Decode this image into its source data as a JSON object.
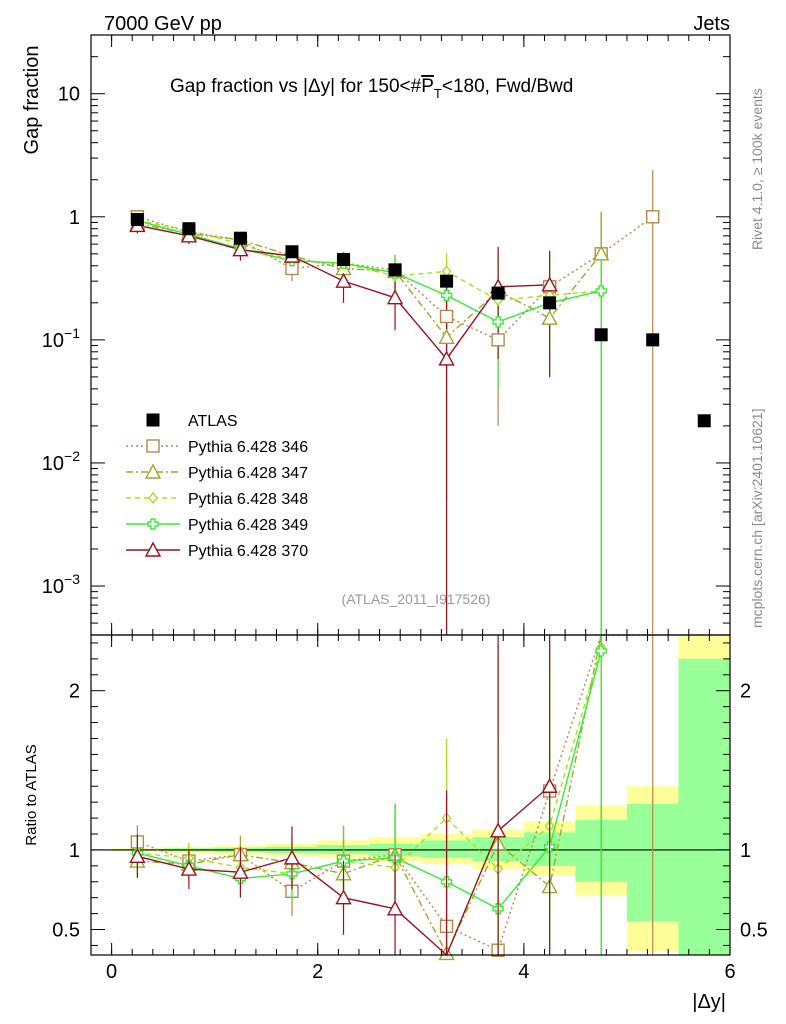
{
  "header": {
    "left": "7000 GeV pp",
    "right": "Jets",
    "side_rivet": "Rivet 4.1.0, ≥ 100k events",
    "side_mcplots": "mcplots.cern.ch [arXiv:2401.10621]",
    "analysis_tag": "(ATLAS_2011_I917526)"
  },
  "legend": [
    {
      "key": "atlas",
      "label": "ATLAS",
      "color": "#000000",
      "marker": "square-filled"
    },
    {
      "key": "p346",
      "label": "Pythia 6.428 346",
      "color": "#b8864b",
      "marker": "square-open"
    },
    {
      "key": "p347",
      "label": "Pythia 6.428 347",
      "color": "#9aaa27",
      "marker": "triangle-open"
    },
    {
      "key": "p348",
      "label": "Pythia 6.428 348",
      "color": "#a4e01e",
      "marker": "diamond-open"
    },
    {
      "key": "p349",
      "label": "Pythia 6.428 349",
      "color": "#33ee33",
      "marker": "cross-open"
    },
    {
      "key": "p370",
      "label": "Pythia 6.428 370",
      "color": "#9b1020",
      "marker": "triangle-open"
    }
  ],
  "chart_data": {
    "type": "line",
    "title": "Gap fraction vs |Δy| for 150<#P̅T<180, Fwd/Bwd",
    "title_parts": {
      "pre": "Gap fraction vs |Δy| for 150<#",
      "var": "P",
      "sub": "T",
      "post": "<180, Fwd/Bwd"
    },
    "xlabel": "|Δy|",
    "ylabel": "Gap fraction",
    "ratio_ylabel": "Ratio to ATLAS",
    "xlim": [
      -0.2,
      6.0
    ],
    "ylim_log": [
      0.0004,
      30
    ],
    "ratio_ylim": [
      0.34,
      2.35
    ],
    "x_ticks": [
      0,
      2,
      4,
      6
    ],
    "x_tick_labels": [
      "0",
      "2",
      "4",
      "6"
    ],
    "y_ticks": [
      0.001,
      0.01,
      0.1,
      1,
      10
    ],
    "y_tick_labels": [
      {
        "base": "10",
        "exp": "−3"
      },
      {
        "base": "10",
        "exp": "−2"
      },
      {
        "base": "10",
        "exp": "−1"
      },
      {
        "base": "1",
        "exp": ""
      },
      {
        "base": "10",
        "exp": ""
      }
    ],
    "ratio_ticks": [
      0.5,
      1,
      2
    ],
    "ratio_tick_labels": [
      "0.5",
      "1",
      "2"
    ],
    "x": [
      0.25,
      0.75,
      1.25,
      1.75,
      2.25,
      2.75,
      3.25,
      3.75,
      4.25,
      4.75,
      5.25,
      5.75
    ],
    "atlas": {
      "values": [
        0.95,
        0.8,
        0.67,
        0.52,
        0.45,
        0.37,
        0.3,
        0.24,
        0.2,
        0.11,
        0.1,
        0.022
      ]
    },
    "band_edges": [
      0,
      0.5,
      1.0,
      1.5,
      2.0,
      2.5,
      3.0,
      3.5,
      4.0,
      4.5,
      5.0,
      5.5,
      6.0
    ],
    "band_yellow": [
      [
        0.99,
        1.01
      ],
      [
        0.98,
        1.02
      ],
      [
        0.97,
        1.03
      ],
      [
        0.96,
        1.04
      ],
      [
        0.95,
        1.06
      ],
      [
        0.93,
        1.08
      ],
      [
        0.91,
        1.1
      ],
      [
        0.88,
        1.13
      ],
      [
        0.84,
        1.18
      ],
      [
        0.71,
        1.28
      ],
      [
        0.36,
        1.4
      ],
      [
        0.3,
        2.35
      ]
    ],
    "band_green": [
      [
        0.995,
        1.005
      ],
      [
        0.99,
        1.01
      ],
      [
        0.985,
        1.015
      ],
      [
        0.98,
        1.02
      ],
      [
        0.975,
        1.03
      ],
      [
        0.96,
        1.04
      ],
      [
        0.95,
        1.06
      ],
      [
        0.93,
        1.08
      ],
      [
        0.9,
        1.11
      ],
      [
        0.8,
        1.19
      ],
      [
        0.55,
        1.29
      ],
      [
        0.3,
        2.2
      ]
    ],
    "series": [
      {
        "key": "p346",
        "name": "Pythia 6.428 346",
        "x": [
          0.25,
          0.75,
          1.25,
          1.75,
          2.25,
          2.75,
          3.25,
          3.75,
          4.25,
          4.75,
          5.25
        ],
        "values": [
          1.0,
          0.75,
          0.65,
          0.38,
          0.42,
          0.37,
          0.155,
          0.1,
          0.27,
          0.5,
          1.0
        ],
        "err_lo": [
          0.1,
          0.08,
          0.08,
          0.08,
          0.1,
          0.12,
          0.12,
          0.08,
          0.2,
          0.5,
          1.0
        ],
        "err_hi": [
          0.1,
          0.08,
          0.08,
          0.08,
          0.1,
          0.12,
          0.3,
          0.2,
          0.25,
          0.6,
          1.4
        ],
        "ratio": [
          1.05,
          0.93,
          0.97,
          0.74,
          0.93,
          0.97,
          0.52,
          0.37,
          1.37,
          4.5,
          10.0
        ]
      },
      {
        "key": "p347",
        "name": "Pythia 6.428 347",
        "x": [
          0.25,
          0.75,
          1.25,
          1.75,
          2.25,
          2.75,
          3.25,
          3.75,
          4.25,
          4.75
        ],
        "values": [
          0.88,
          0.73,
          0.65,
          0.48,
          0.38,
          0.36,
          0.105,
          0.25,
          0.15,
          0.5
        ],
        "err_lo": [
          0.1,
          0.08,
          0.08,
          0.09,
          0.1,
          0.1,
          0.1,
          0.15,
          0.1,
          0.5
        ],
        "err_hi": [
          0.1,
          0.08,
          0.08,
          0.09,
          0.1,
          0.12,
          0.2,
          0.3,
          0.3,
          0.6
        ],
        "ratio": [
          0.93,
          0.91,
          0.97,
          0.92,
          0.85,
          0.97,
          0.35,
          1.04,
          0.77,
          4.5
        ]
      },
      {
        "key": "p348",
        "name": "Pythia 6.428 348",
        "x": [
          0.25,
          0.75,
          1.25,
          1.75,
          2.25,
          2.75,
          3.25,
          3.75,
          4.25,
          4.75
        ],
        "values": [
          0.93,
          0.78,
          0.6,
          0.44,
          0.42,
          0.33,
          0.36,
          0.21,
          0.23,
          0.25
        ],
        "err_lo": [
          0.1,
          0.08,
          0.08,
          0.09,
          0.1,
          0.1,
          0.2,
          0.15,
          0.12,
          0.25
        ],
        "err_hi": [
          0.1,
          0.08,
          0.08,
          0.09,
          0.1,
          0.12,
          0.15,
          0.2,
          0.2,
          0.3
        ],
        "ratio": [
          0.98,
          0.95,
          0.89,
          0.85,
          0.93,
          0.89,
          1.2,
          0.88,
          1.15,
          2.27
        ]
      },
      {
        "key": "p349",
        "name": "Pythia 6.428 349",
        "x": [
          0.25,
          0.75,
          1.25,
          1.75,
          2.25,
          2.75,
          3.25,
          3.75,
          4.25,
          4.75
        ],
        "values": [
          0.93,
          0.72,
          0.55,
          0.44,
          0.42,
          0.35,
          0.23,
          0.14,
          0.2,
          0.25
        ],
        "err_lo": [
          0.1,
          0.08,
          0.08,
          0.09,
          0.1,
          0.1,
          0.23,
          0.1,
          0.12,
          0.25
        ],
        "err_hi": [
          0.1,
          0.08,
          0.08,
          0.09,
          0.1,
          0.12,
          0.15,
          0.1,
          0.2,
          0.3
        ],
        "ratio": [
          0.98,
          0.9,
          0.82,
          0.85,
          0.93,
          0.95,
          0.8,
          0.63,
          1.02,
          2.25
        ]
      },
      {
        "key": "p370",
        "name": "Pythia 6.428 370",
        "x": [
          0.25,
          0.75,
          1.25,
          1.75,
          2.25,
          2.75,
          3.25,
          3.75,
          4.25
        ],
        "values": [
          0.85,
          0.7,
          0.54,
          0.48,
          0.3,
          0.22,
          0.07,
          0.27,
          0.28
        ],
        "err_lo": [
          0.12,
          0.1,
          0.1,
          0.1,
          0.1,
          0.1,
          0.07,
          0.2,
          0.23
        ],
        "err_hi": [
          0.12,
          0.1,
          0.1,
          0.1,
          0.1,
          0.12,
          0.3,
          0.3,
          0.25
        ],
        "ratio": [
          0.96,
          0.88,
          0.86,
          0.95,
          0.7,
          0.63,
          0.26,
          1.12,
          1.4
        ]
      }
    ]
  }
}
